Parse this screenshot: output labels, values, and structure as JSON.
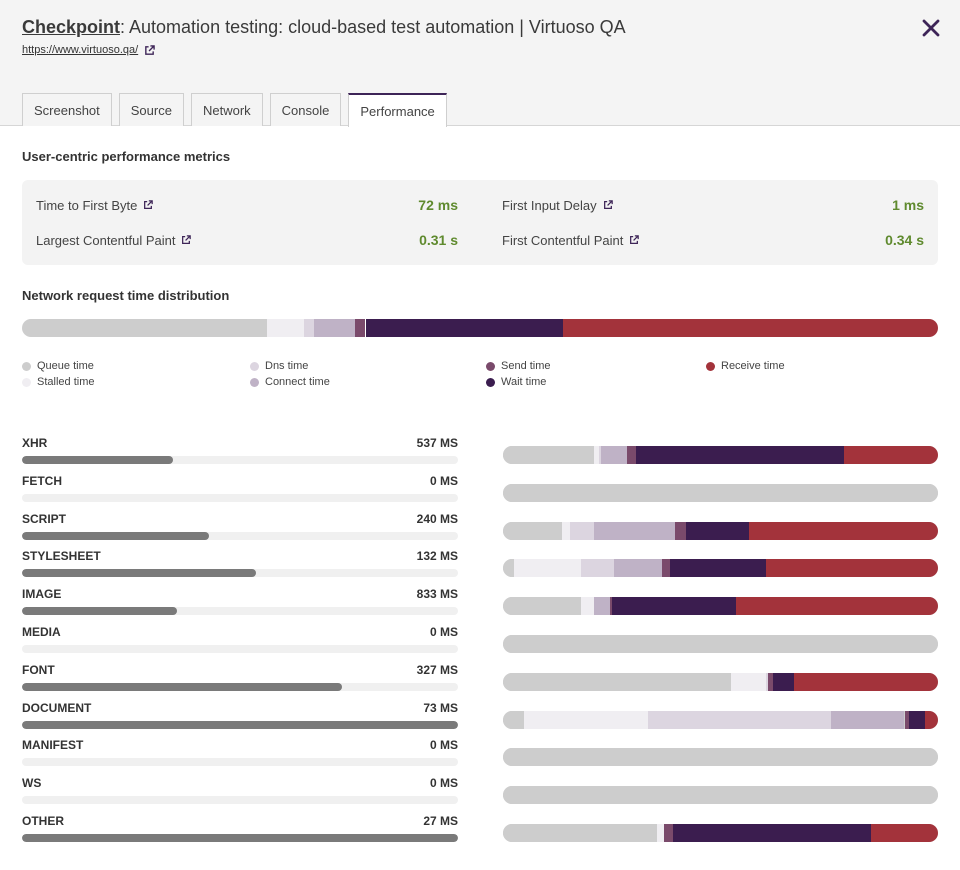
{
  "header": {
    "title_prefix": "Checkpoint",
    "title_rest": ": Automation testing: cloud-based test automation | Virtuoso QA",
    "url": "https://www.virtuoso.qa/"
  },
  "tabs": [
    {
      "label": "Screenshot",
      "active": false
    },
    {
      "label": "Source",
      "active": false
    },
    {
      "label": "Network",
      "active": false
    },
    {
      "label": "Console",
      "active": false
    },
    {
      "label": "Performance",
      "active": true
    }
  ],
  "metrics": {
    "section_title": "User-centric performance metrics",
    "items": [
      {
        "label": "Time to First Byte",
        "value": "72 ms"
      },
      {
        "label": "First Input Delay",
        "value": "1 ms"
      },
      {
        "label": "Largest Contentful Paint",
        "value": "0.31 s"
      },
      {
        "label": "First Contentful Paint",
        "value": "0.34 s"
      }
    ]
  },
  "distribution": {
    "section_title": "Network request time distribution",
    "segments": [
      {
        "phase": "queue",
        "fraction": 0.268
      },
      {
        "phase": "stalled",
        "fraction": 0.04
      },
      {
        "phase": "dns",
        "fraction": 0.011
      },
      {
        "phase": "connect",
        "fraction": 0.045
      },
      {
        "phase": "send",
        "fraction": 0.011
      },
      {
        "phase": "wait",
        "fraction": 0.216
      },
      {
        "phase": "receive",
        "fraction": 0.409
      }
    ]
  },
  "legend": [
    {
      "phase": "queue",
      "label": "Queue time"
    },
    {
      "phase": "stalled",
      "label": "Stalled time"
    },
    {
      "phase": "dns",
      "label": "Dns time"
    },
    {
      "phase": "connect",
      "label": "Connect time"
    },
    {
      "phase": "send",
      "label": "Send time"
    },
    {
      "phase": "wait",
      "label": "Wait time"
    },
    {
      "phase": "receive",
      "label": "Receive time"
    }
  ],
  "colors": {
    "queue": "#cdcdcd",
    "stalled": "#f0eef2",
    "dns": "#dcd5e0",
    "connect": "#bfb2c6",
    "send": "#7a4a6b",
    "wait": "#3b1d4f",
    "receive": "#a3333b",
    "accent": "#3d2457",
    "metric_value": "#5f8a2e"
  },
  "resource_types": [
    {
      "label": "XHR",
      "value": "537 MS",
      "level": 0.347,
      "segments": [
        {
          "phase": "queue",
          "fraction": 0.21
        },
        {
          "phase": "stalled",
          "fraction": 0.01
        },
        {
          "phase": "dns",
          "fraction": 0.005
        },
        {
          "phase": "connect",
          "fraction": 0.06
        },
        {
          "phase": "send",
          "fraction": 0.02
        },
        {
          "phase": "wait",
          "fraction": 0.48
        },
        {
          "phase": "receive",
          "fraction": 0.215
        }
      ]
    },
    {
      "label": "FETCH",
      "value": "0 MS",
      "level": 0,
      "segments": [
        {
          "phase": "queue",
          "fraction": 1.0
        }
      ]
    },
    {
      "label": "SCRIPT",
      "value": "240 MS",
      "level": 0.429,
      "segments": [
        {
          "phase": "queue",
          "fraction": 0.135
        },
        {
          "phase": "stalled",
          "fraction": 0.02
        },
        {
          "phase": "dns",
          "fraction": 0.055
        },
        {
          "phase": "connect",
          "fraction": 0.185
        },
        {
          "phase": "send",
          "fraction": 0.025
        },
        {
          "phase": "wait",
          "fraction": 0.145
        },
        {
          "phase": "receive",
          "fraction": 0.435
        }
      ]
    },
    {
      "label": "STYLESHEET",
      "value": "132 MS",
      "level": 0.537,
      "segments": [
        {
          "phase": "queue",
          "fraction": 0.025
        },
        {
          "phase": "stalled",
          "fraction": 0.155
        },
        {
          "phase": "dns",
          "fraction": 0.075
        },
        {
          "phase": "connect",
          "fraction": 0.11
        },
        {
          "phase": "send",
          "fraction": 0.02
        },
        {
          "phase": "wait",
          "fraction": 0.22
        },
        {
          "phase": "receive",
          "fraction": 0.395
        }
      ]
    },
    {
      "label": "IMAGE",
      "value": "833 MS",
      "level": 0.355,
      "segments": [
        {
          "phase": "queue",
          "fraction": 0.18
        },
        {
          "phase": "stalled",
          "fraction": 0.03
        },
        {
          "phase": "connect",
          "fraction": 0.035
        },
        {
          "phase": "send",
          "fraction": 0.005
        },
        {
          "phase": "wait",
          "fraction": 0.285
        },
        {
          "phase": "receive",
          "fraction": 0.465
        }
      ]
    },
    {
      "label": "MEDIA",
      "value": "0 MS",
      "level": 0,
      "segments": [
        {
          "phase": "queue",
          "fraction": 1.0
        }
      ]
    },
    {
      "label": "FONT",
      "value": "327 MS",
      "level": 0.735,
      "segments": [
        {
          "phase": "queue",
          "fraction": 0.525
        },
        {
          "phase": "stalled",
          "fraction": 0.08
        },
        {
          "phase": "dns",
          "fraction": 0.005
        },
        {
          "phase": "send",
          "fraction": 0.01
        },
        {
          "phase": "wait",
          "fraction": 0.05
        },
        {
          "phase": "receive",
          "fraction": 0.33
        }
      ]
    },
    {
      "label": "DOCUMENT",
      "value": "73 MS",
      "level": 1.0,
      "segments": [
        {
          "phase": "queue",
          "fraction": 0.048
        },
        {
          "phase": "stalled",
          "fraction": 0.285
        },
        {
          "phase": "dns",
          "fraction": 0.42
        },
        {
          "phase": "connect",
          "fraction": 0.17
        },
        {
          "phase": "send",
          "fraction": 0.01
        },
        {
          "phase": "wait",
          "fraction": 0.037
        },
        {
          "phase": "receive",
          "fraction": 0.03
        }
      ]
    },
    {
      "label": "MANIFEST",
      "value": "0 MS",
      "level": 0,
      "segments": [
        {
          "phase": "queue",
          "fraction": 1.0
        }
      ]
    },
    {
      "label": "WS",
      "value": "0 MS",
      "level": 0,
      "segments": [
        {
          "phase": "queue",
          "fraction": 1.0
        }
      ]
    },
    {
      "label": "OTHER",
      "value": "27 MS",
      "level": 1.0,
      "segments": [
        {
          "phase": "queue",
          "fraction": 0.355
        },
        {
          "phase": "stalled",
          "fraction": 0.015
        },
        {
          "phase": "send",
          "fraction": 0.02
        },
        {
          "phase": "wait",
          "fraction": 0.455
        },
        {
          "phase": "receive",
          "fraction": 0.155
        }
      ]
    }
  ]
}
